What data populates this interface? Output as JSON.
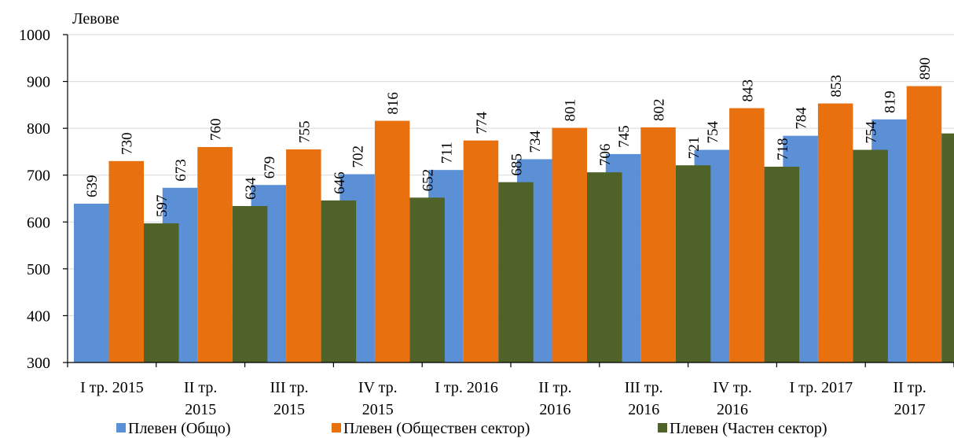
{
  "chart_data": {
    "type": "bar",
    "title": "",
    "ylabel": "Левове",
    "xlabel": "",
    "ylim": [
      300,
      1000
    ],
    "yticks": [
      300,
      400,
      500,
      600,
      700,
      800,
      900,
      1000
    ],
    "grid": true,
    "legend_position": "bottom",
    "categories": [
      [
        "I тр. 2015"
      ],
      [
        "II тр.",
        "2015"
      ],
      [
        "III тр.",
        "2015"
      ],
      [
        "IV тр.",
        "2015"
      ],
      [
        "I тр. 2016"
      ],
      [
        "II тр.",
        "2016"
      ],
      [
        "III тр.",
        "2016"
      ],
      [
        "IV тр.",
        "2016"
      ],
      [
        "I тр. 2017"
      ],
      [
        "II тр.",
        "2017"
      ]
    ],
    "series": [
      {
        "name": "Плевен (Общо)",
        "color": "#5B8FD6",
        "values": [
          639,
          673,
          679,
          702,
          711,
          734,
          745,
          754,
          784,
          819
        ]
      },
      {
        "name": "Плевен (Обществен сектор)",
        "color": "#E8700F",
        "values": [
          730,
          760,
          755,
          816,
          774,
          801,
          802,
          843,
          853,
          890
        ]
      },
      {
        "name": "Плевен (Частен сектор)",
        "color": "#4F6228",
        "values": [
          597,
          634,
          646,
          652,
          685,
          706,
          721,
          718,
          754,
          789
        ]
      }
    ]
  }
}
